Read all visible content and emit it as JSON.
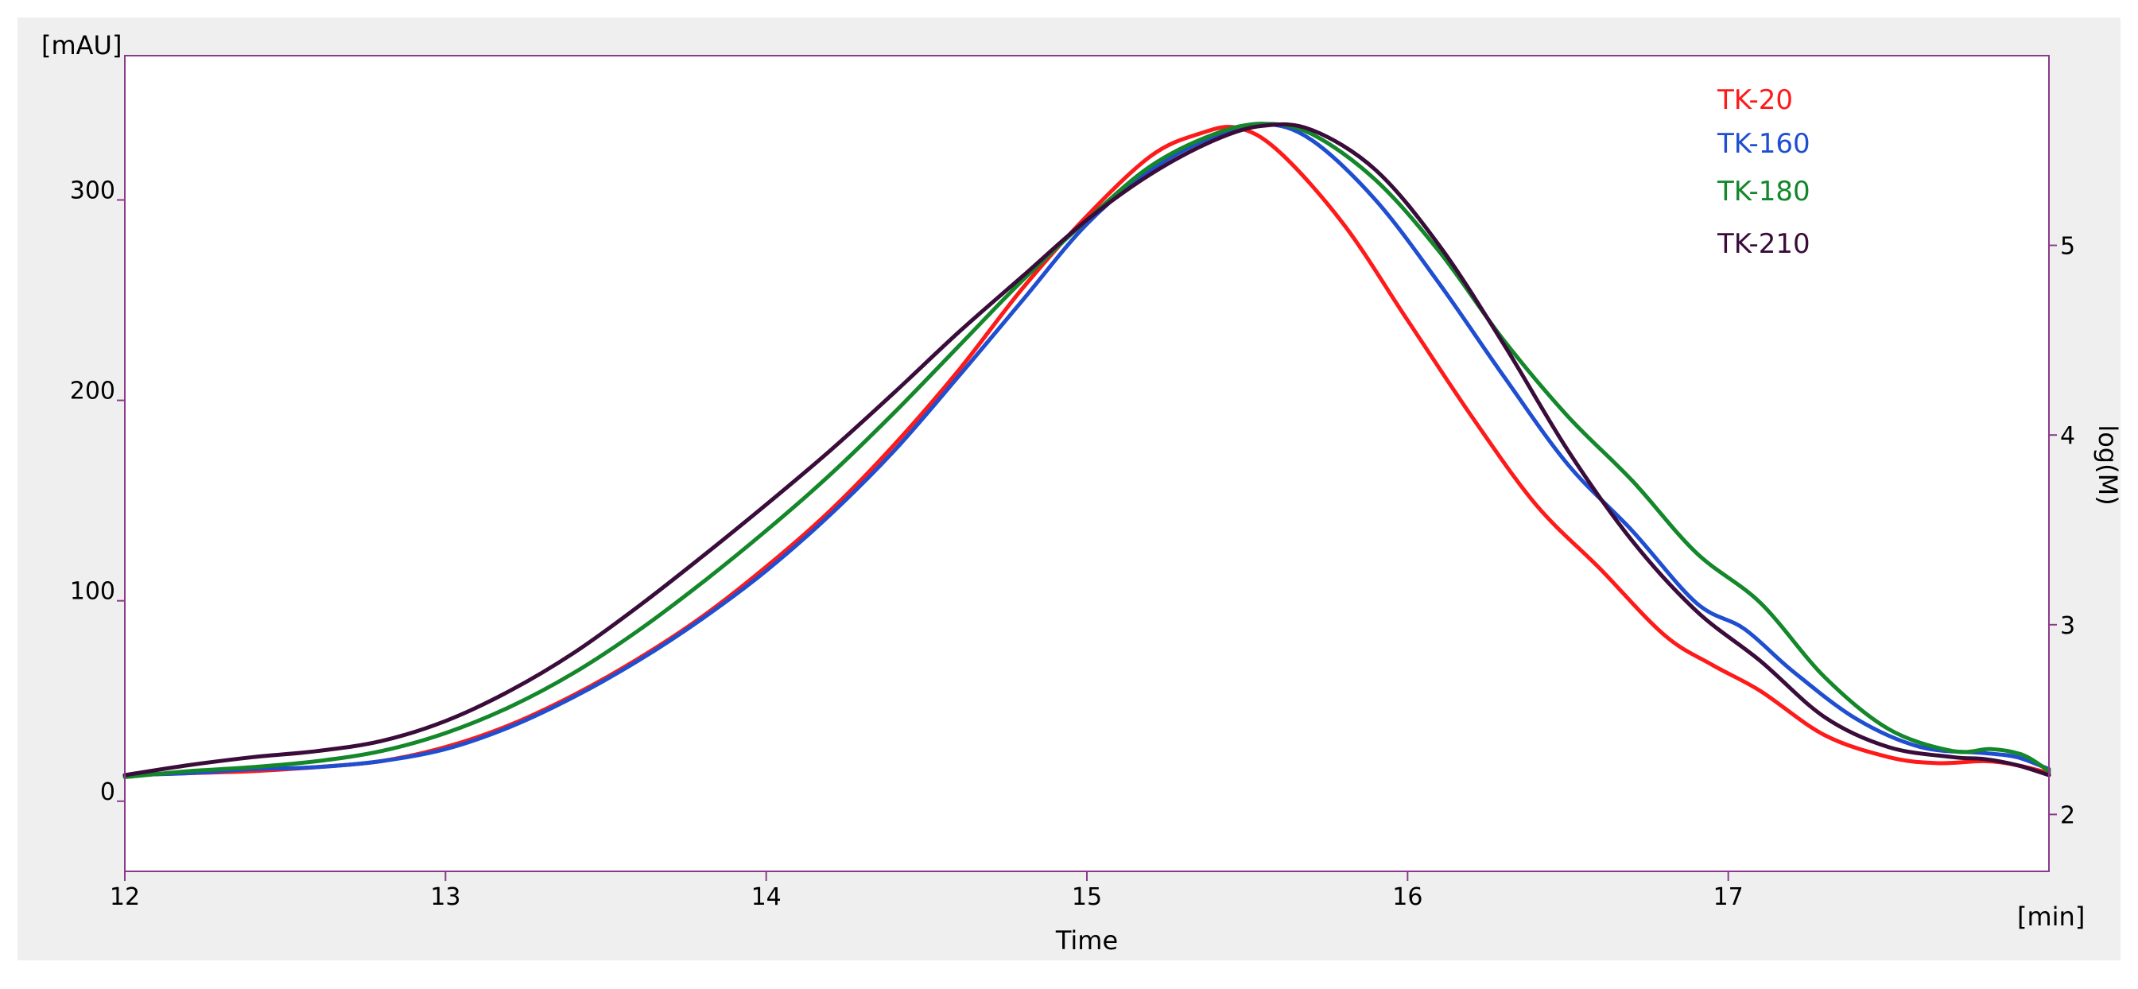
{
  "chart_data": {
    "type": "line",
    "xlabel": "Time",
    "x_unit_label": "[min]",
    "y_unit_label": "[mAU]",
    "y2label": "log(M)",
    "xlim": [
      12,
      18
    ],
    "ylim": [
      -35,
      372
    ],
    "y2lim": [
      1.7,
      6
    ],
    "x_ticks": [
      12,
      13,
      14,
      15,
      16,
      17
    ],
    "y_ticks": [
      0,
      100,
      200,
      300
    ],
    "y2_ticks": [
      2,
      3,
      4,
      5
    ],
    "grid": false,
    "legend_position": "top-right",
    "colors": {
      "background": "#efefef",
      "plot_background": "#ffffff",
      "plot_border": "#8b3a8b",
      "axis_text": "#000000"
    },
    "series": [
      {
        "name": "TK-20",
        "color": "#ff1a1a",
        "x": [
          12.0,
          12.2,
          12.4,
          12.6,
          12.8,
          13.0,
          13.2,
          13.4,
          13.6,
          13.8,
          14.0,
          14.2,
          14.4,
          14.6,
          14.8,
          15.0,
          15.2,
          15.35,
          15.47,
          15.6,
          15.8,
          16.0,
          16.2,
          16.4,
          16.6,
          16.8,
          16.95,
          17.1,
          17.3,
          17.5,
          17.65,
          17.8,
          17.9,
          18.0
        ],
        "y": [
          13,
          14,
          15,
          17,
          20,
          27,
          38,
          53,
          71,
          92,
          117,
          145,
          178,
          215,
          256,
          292,
          322,
          333,
          336,
          324,
          288,
          240,
          192,
          148,
          116,
          83,
          68,
          55,
          33,
          22,
          19,
          20,
          18,
          14
        ]
      },
      {
        "name": "TK-160",
        "color": "#1f4fd0",
        "x": [
          12.0,
          12.2,
          12.4,
          12.6,
          12.8,
          13.0,
          13.2,
          13.4,
          13.6,
          13.8,
          14.0,
          14.2,
          14.4,
          14.6,
          14.8,
          15.0,
          15.2,
          15.4,
          15.55,
          15.7,
          15.9,
          16.1,
          16.3,
          16.5,
          16.7,
          16.9,
          17.05,
          17.2,
          17.4,
          17.6,
          17.8,
          17.9,
          18.0
        ],
        "y": [
          13,
          14,
          16,
          17,
          20,
          26,
          37,
          52,
          70,
          91,
          115,
          143,
          175,
          212,
          250,
          288,
          315,
          332,
          338,
          330,
          300,
          258,
          212,
          168,
          135,
          99,
          86,
          65,
          41,
          27,
          24,
          22,
          16
        ]
      },
      {
        "name": "TK-180",
        "color": "#13872a",
        "x": [
          12.0,
          12.2,
          12.4,
          12.6,
          12.8,
          13.0,
          13.2,
          13.4,
          13.6,
          13.8,
          14.0,
          14.2,
          14.4,
          14.6,
          14.8,
          15.0,
          15.2,
          15.4,
          15.55,
          15.7,
          15.9,
          16.1,
          16.3,
          16.5,
          16.7,
          16.9,
          17.1,
          17.3,
          17.5,
          17.7,
          17.82,
          17.92,
          18.0
        ],
        "y": [
          12,
          15,
          17,
          20,
          25,
          34,
          47,
          64,
          85,
          109,
          135,
          163,
          194,
          227,
          260,
          290,
          317,
          333,
          338,
          333,
          310,
          274,
          230,
          192,
          160,
          124,
          99,
          62,
          36,
          25,
          26,
          23,
          15
        ]
      },
      {
        "name": "TK-210",
        "color": "#3a0c3a",
        "x": [
          12.0,
          12.2,
          12.4,
          12.6,
          12.8,
          13.0,
          13.2,
          13.4,
          13.6,
          13.8,
          14.0,
          14.2,
          14.4,
          14.6,
          14.8,
          15.0,
          15.2,
          15.4,
          15.55,
          15.7,
          15.9,
          16.1,
          16.3,
          16.5,
          16.7,
          16.9,
          17.1,
          17.3,
          17.5,
          17.7,
          17.8,
          17.9,
          18.0
        ],
        "y": [
          13,
          18,
          22,
          25,
          30,
          40,
          55,
          74,
          97,
          122,
          148,
          175,
          204,
          234,
          262,
          290,
          313,
          330,
          337,
          335,
          315,
          277,
          228,
          175,
          130,
          95,
          70,
          42,
          27,
          22,
          21,
          18,
          13
        ]
      }
    ]
  }
}
